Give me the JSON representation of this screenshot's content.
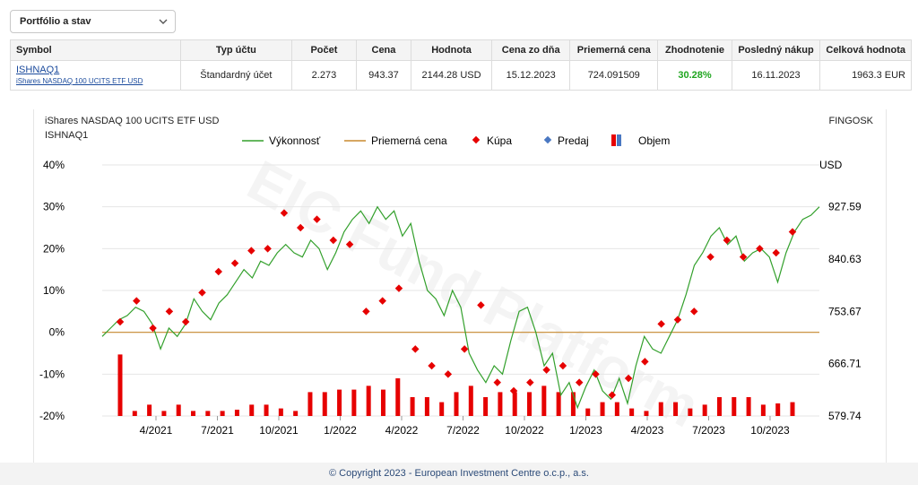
{
  "select": {
    "value": "Portfólio a stav"
  },
  "table": {
    "headers": [
      "Symbol",
      "Typ účtu",
      "Počet",
      "Cena",
      "Hodnota",
      "Cena zo dňa",
      "Priemerná cena",
      "Zhodnotenie",
      "Posledný nákup",
      "Celková hodnota"
    ],
    "row": {
      "symbol": "ISHNAQ1",
      "name": "iShares NASDAQ 100 UCITS ETF USD",
      "account_type": "Štandardný účet",
      "count": "2.273",
      "price": "943.37",
      "value": "2144.28 USD",
      "price_date": "15.12.2023",
      "avg_price": "724.091509",
      "gain": "30.28%",
      "last_purchase": "16.11.2023",
      "total_value": "1963.3 EUR"
    }
  },
  "chart": {
    "title": "iShares NASDAQ 100 UCITS ETF USD",
    "subtitle": "ISHNAQ1",
    "source": "FINGOSK",
    "watermark": "EIC Fund Platform",
    "right_axis_unit": "USD",
    "colors": {
      "line": "#33a02c",
      "avg": "#c88a2e",
      "buy": "#e60000",
      "sell": "#4a78c2",
      "volume": "#e60000"
    }
  },
  "chart_data": {
    "type": "line",
    "legend": [
      "Výkonnosť",
      "Priemerná cena",
      "Kúpa",
      "Predaj",
      "Objem"
    ],
    "legend_position": "top",
    "y_left": {
      "ticks": [
        "40%",
        "30%",
        "20%",
        "10%",
        "0%",
        "-10%",
        "-20%"
      ],
      "range": [
        -20,
        40
      ]
    },
    "y_right": {
      "ticks": [
        "927.59",
        "840.63",
        "753.67",
        "666.71",
        "579.74"
      ],
      "unit": "USD"
    },
    "x_ticks": [
      "4/2021",
      "7/2021",
      "10/2021",
      "1/2022",
      "4/2022",
      "7/2022",
      "10/2022",
      "1/2023",
      "4/2023",
      "7/2023",
      "10/2023"
    ],
    "performance": [
      [
        0,
        -1
      ],
      [
        1,
        1
      ],
      [
        2,
        3
      ],
      [
        3,
        4
      ],
      [
        4,
        6
      ],
      [
        5,
        5
      ],
      [
        6,
        2
      ],
      [
        7,
        -4
      ],
      [
        8,
        1
      ],
      [
        9,
        -1
      ],
      [
        10,
        2
      ],
      [
        11,
        8
      ],
      [
        12,
        5
      ],
      [
        13,
        3
      ],
      [
        14,
        7
      ],
      [
        15,
        9
      ],
      [
        16,
        12
      ],
      [
        17,
        15
      ],
      [
        18,
        13
      ],
      [
        19,
        17
      ],
      [
        20,
        16
      ],
      [
        21,
        19
      ],
      [
        22,
        21
      ],
      [
        23,
        19
      ],
      [
        24,
        18
      ],
      [
        25,
        22
      ],
      [
        26,
        20
      ],
      [
        27,
        15
      ],
      [
        28,
        19
      ],
      [
        29,
        24
      ],
      [
        30,
        27
      ],
      [
        31,
        29
      ],
      [
        32,
        26
      ],
      [
        33,
        30
      ],
      [
        34,
        27
      ],
      [
        35,
        29
      ],
      [
        36,
        23
      ],
      [
        37,
        26
      ],
      [
        38,
        17
      ],
      [
        39,
        10
      ],
      [
        40,
        8
      ],
      [
        41,
        4
      ],
      [
        42,
        10
      ],
      [
        43,
        6
      ],
      [
        44,
        -5
      ],
      [
        45,
        -9
      ],
      [
        46,
        -12
      ],
      [
        47,
        -8
      ],
      [
        48,
        -10
      ],
      [
        49,
        -2
      ],
      [
        50,
        5
      ],
      [
        51,
        6
      ],
      [
        52,
        0
      ],
      [
        53,
        -8
      ],
      [
        54,
        -5
      ],
      [
        55,
        -15
      ],
      [
        56,
        -12
      ],
      [
        57,
        -18
      ],
      [
        58,
        -13
      ],
      [
        59,
        -9
      ],
      [
        60,
        -14
      ],
      [
        61,
        -16
      ],
      [
        62,
        -11
      ],
      [
        63,
        -17
      ],
      [
        64,
        -8
      ],
      [
        65,
        -1
      ],
      [
        66,
        -4
      ],
      [
        67,
        -5
      ],
      [
        68,
        -1
      ],
      [
        69,
        3
      ],
      [
        70,
        9
      ],
      [
        71,
        16
      ],
      [
        72,
        19
      ],
      [
        73,
        23
      ],
      [
        74,
        25
      ],
      [
        75,
        21
      ],
      [
        76,
        23
      ],
      [
        77,
        17
      ],
      [
        78,
        19
      ],
      [
        79,
        20
      ],
      [
        80,
        18
      ],
      [
        81,
        12
      ],
      [
        82,
        19
      ],
      [
        83,
        24
      ],
      [
        84,
        27
      ],
      [
        85,
        28
      ],
      [
        86,
        30
      ]
    ],
    "buys": [
      [
        1,
        2.5
      ],
      [
        2,
        7.5
      ],
      [
        3,
        1
      ],
      [
        6,
        5
      ],
      [
        7,
        2.5
      ],
      [
        8,
        9.5
      ],
      [
        9,
        14.5
      ],
      [
        10,
        16.5
      ],
      [
        12,
        19.5
      ],
      [
        13,
        20
      ],
      [
        14,
        28.5
      ],
      [
        15,
        25
      ],
      [
        16,
        27
      ],
      [
        17,
        22
      ],
      [
        18,
        21
      ],
      [
        20,
        5
      ],
      [
        21,
        7.5
      ],
      [
        22,
        10.5
      ],
      [
        23,
        -4
      ],
      [
        24,
        -8
      ],
      [
        25,
        -10
      ],
      [
        26,
        -4
      ],
      [
        27,
        6.5
      ],
      [
        28,
        -12
      ],
      [
        29,
        -14
      ],
      [
        30,
        -12
      ],
      [
        31,
        -9
      ],
      [
        32,
        -8
      ],
      [
        33,
        -12
      ],
      [
        34,
        -10
      ],
      [
        35,
        -15
      ],
      [
        36,
        -11
      ],
      [
        37,
        -7
      ],
      [
        38,
        2
      ],
      [
        39,
        3
      ],
      [
        40,
        5
      ],
      [
        41,
        18
      ],
      [
        42,
        22
      ],
      [
        43,
        18
      ],
      [
        44,
        20
      ],
      [
        45,
        19
      ],
      [
        46,
        24
      ]
    ],
    "volume_units": "relative",
    "volume": [
      0.98,
      0.08,
      0.18,
      0.08,
      0.18,
      0.08,
      0.08,
      0.08,
      0.1,
      0.18,
      0.18,
      0.12,
      0.08,
      0.38,
      0.38,
      0.42,
      0.42,
      0.48,
      0.42,
      0.6,
      0.3,
      0.3,
      0.22,
      0.38,
      0.48,
      0.3,
      0.38,
      0.38,
      0.38,
      0.48,
      0.38,
      0.38,
      0.12,
      0.22,
      0.22,
      0.12,
      0.08,
      0.22,
      0.22,
      0.12,
      0.18,
      0.3,
      0.3,
      0.3,
      0.18,
      0.2,
      0.22
    ]
  },
  "footer": {
    "text": "© Copyright 2023 - European Investment Centre o.c.p., a.s."
  }
}
